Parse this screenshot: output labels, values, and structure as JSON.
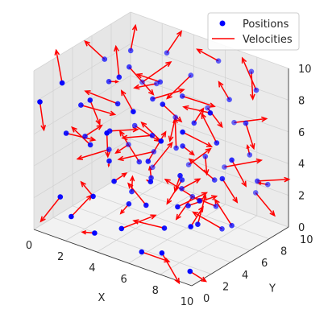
{
  "chart_data": {
    "type": "scatter",
    "projection": "3d",
    "axes": {
      "x": {
        "label": "X",
        "range": [
          0,
          10
        ],
        "ticks": [
          "0",
          "2",
          "4",
          "6",
          "8",
          "10"
        ]
      },
      "y": {
        "label": "Y",
        "range": [
          0,
          10
        ],
        "ticks": [
          "0",
          "2",
          "4",
          "6",
          "8",
          "10"
        ]
      },
      "z": {
        "label": "",
        "range": [
          0,
          10
        ],
        "ticks": [
          "0",
          "2",
          "4",
          "6",
          "8",
          "10"
        ]
      }
    },
    "grid": true,
    "legend": {
      "placement": "top-right",
      "entries": [
        {
          "label": "Positions",
          "marker": "dot",
          "color": "#0000ff"
        },
        {
          "label": "Velocities",
          "marker": "line",
          "color": "#ff0000"
        }
      ]
    },
    "series": [
      {
        "name": "Positions",
        "color": "#0000ff",
        "points": [
          [
            0.5,
            6.5,
            8.5
          ],
          [
            1.2,
            5.8,
            7.6
          ],
          [
            0.9,
            3.4,
            6.9
          ],
          [
            1.6,
            7.4,
            9.1
          ],
          [
            2.3,
            6.1,
            8.8
          ],
          [
            2.8,
            4.1,
            7.4
          ],
          [
            3.4,
            8.2,
            9.3
          ],
          [
            3.9,
            6.7,
            8.2
          ],
          [
            4.4,
            5.1,
            7.9
          ],
          [
            5.1,
            7.9,
            8.6
          ],
          [
            5.6,
            6.2,
            8.1
          ],
          [
            6.3,
            8.8,
            9.6
          ],
          [
            6.9,
            5.3,
            7.2
          ],
          [
            7.6,
            7.8,
            8.0
          ],
          [
            8.2,
            9.1,
            9.5
          ],
          [
            9.0,
            8.3,
            8.9
          ],
          [
            9.5,
            6.4,
            7.7
          ],
          [
            8.7,
            4.7,
            6.8
          ],
          [
            0.7,
            2.2,
            5.5
          ],
          [
            1.8,
            2.9,
            4.9
          ],
          [
            2.6,
            3.6,
            5.8
          ],
          [
            3.3,
            2.4,
            4.6
          ],
          [
            4.1,
            1.6,
            3.9
          ],
          [
            4.8,
            4.4,
            6.0
          ],
          [
            5.4,
            3.0,
            5.1
          ],
          [
            6.1,
            2.1,
            4.4
          ],
          [
            6.6,
            4.6,
            5.9
          ],
          [
            7.3,
            3.2,
            4.8
          ],
          [
            8.0,
            1.8,
            3.6
          ],
          [
            8.9,
            2.6,
            4.0
          ],
          [
            9.6,
            3.8,
            5.2
          ],
          [
            9.2,
            1.2,
            3.0
          ],
          [
            0.3,
            4.8,
            4.2
          ],
          [
            1.4,
            5.5,
            3.5
          ],
          [
            2.1,
            7.0,
            4.7
          ],
          [
            3.0,
            6.0,
            3.1
          ],
          [
            3.7,
            8.6,
            5.2
          ],
          [
            4.6,
            7.2,
            4.1
          ],
          [
            5.3,
            9.3,
            6.1
          ],
          [
            5.9,
            8.1,
            3.7
          ],
          [
            6.8,
            9.6,
            5.6
          ],
          [
            7.4,
            6.6,
            3.3
          ],
          [
            8.4,
            8.6,
            4.5
          ],
          [
            9.3,
            9.0,
            2.8
          ],
          [
            9.8,
            7.1,
            3.9
          ],
          [
            1.0,
            1.1,
            2.0
          ],
          [
            2.0,
            0.6,
            1.3
          ],
          [
            2.9,
            1.4,
            2.6
          ],
          [
            3.6,
            0.4,
            0.9
          ],
          [
            4.3,
            2.8,
            2.1
          ],
          [
            5.0,
            0.9,
            1.5
          ],
          [
            5.7,
            2.3,
            2.7
          ],
          [
            6.4,
            0.7,
            0.6
          ],
          [
            7.1,
            1.9,
            1.9
          ],
          [
            7.8,
            0.5,
            1.1
          ],
          [
            8.6,
            2.9,
            2.3
          ],
          [
            9.4,
            0.8,
            0.4
          ],
          [
            0.6,
            8.8,
            2.3
          ],
          [
            1.7,
            9.5,
            1.0
          ],
          [
            2.7,
            8.0,
            2.9
          ],
          [
            3.8,
            9.8,
            1.8
          ],
          [
            4.9,
            8.4,
            0.7
          ],
          [
            6.0,
            9.9,
            2.4
          ],
          [
            7.0,
            7.4,
            1.2
          ],
          [
            8.1,
            9.7,
            1.6
          ],
          [
            9.1,
            5.6,
            1.4
          ],
          [
            0.2,
            0.3,
            8.0
          ],
          [
            1.3,
            0.8,
            9.4
          ],
          [
            2.4,
            1.9,
            8.3
          ],
          [
            3.5,
            3.1,
            9.7
          ],
          [
            4.5,
            0.2,
            7.6
          ],
          [
            5.5,
            1.3,
            8.9
          ],
          [
            6.5,
            2.7,
            9.2
          ],
          [
            7.5,
            0.9,
            7.9
          ],
          [
            8.5,
            1.5,
            8.6
          ],
          [
            9.7,
            2.4,
            9.9
          ],
          [
            0.8,
            9.9,
            5.9
          ],
          [
            2.2,
            9.1,
            6.6
          ],
          [
            3.2,
            4.9,
            1.7
          ],
          [
            4.0,
            5.6,
            2.6
          ],
          [
            5.2,
            6.8,
            1.9
          ],
          [
            6.2,
            5.2,
            3.4
          ],
          [
            7.2,
            4.2,
            2.5
          ],
          [
            8.3,
            5.9,
            0.8
          ],
          [
            9.9,
            4.3,
            6.3
          ]
        ],
        "velocities": [
          [
            -1.2,
            0.4,
            0.3
          ],
          [
            0.8,
            -0.6,
            0.5
          ],
          [
            1.1,
            0.9,
            -0.4
          ],
          [
            -0.5,
            1.2,
            0.6
          ],
          [
            1.3,
            -0.2,
            -0.8
          ],
          [
            -0.9,
            -1.1,
            0.7
          ],
          [
            0.4,
            0.5,
            1.0
          ],
          [
            -1.3,
            0.3,
            -0.2
          ],
          [
            0.9,
            1.0,
            0.4
          ],
          [
            -0.6,
            -0.9,
            -1.0
          ],
          [
            1.2,
            0.6,
            -0.3
          ],
          [
            -0.3,
            -1.2,
            0.9
          ],
          [
            0.7,
            -0.4,
            1.1
          ],
          [
            -1.0,
            0.8,
            0.2
          ],
          [
            0.5,
            -0.7,
            -0.9
          ],
          [
            -0.8,
            0.2,
            1.2
          ],
          [
            1.0,
            -1.0,
            -0.5
          ],
          [
            -1.1,
            0.6,
            0.8
          ],
          [
            0.6,
            1.3,
            -0.6
          ],
          [
            -0.4,
            -0.8,
            1.0
          ],
          [
            1.3,
            0.1,
            0.5
          ],
          [
            -0.7,
            1.1,
            -0.9
          ],
          [
            0.9,
            -0.5,
            0.9
          ],
          [
            -1.2,
            -0.4,
            -0.4
          ],
          [
            0.3,
            0.9,
            1.2
          ],
          [
            -0.9,
            1.2,
            -0.7
          ],
          [
            1.1,
            -0.9,
            0.3
          ],
          [
            -0.5,
            0.4,
            -1.1
          ],
          [
            0.8,
            1.0,
            0.6
          ],
          [
            -1.3,
            -0.6,
            0.8
          ],
          [
            0.6,
            0.2,
            -1.0
          ],
          [
            -0.2,
            1.3,
            0.4
          ],
          [
            1.0,
            -0.3,
            1.0
          ],
          [
            -0.8,
            -1.2,
            -0.3
          ],
          [
            0.7,
            0.8,
            -0.8
          ],
          [
            -1.0,
            0.1,
            1.1
          ],
          [
            0.4,
            -1.1,
            -0.6
          ],
          [
            -0.6,
            0.9,
            0.9
          ],
          [
            1.2,
            -0.8,
            -0.2
          ],
          [
            -0.3,
            0.6,
            -1.2
          ],
          [
            0.9,
            1.1,
            0.1
          ],
          [
            -1.1,
            -0.2,
            0.7
          ],
          [
            0.5,
            -1.0,
            1.0
          ],
          [
            -0.9,
            0.7,
            -0.5
          ],
          [
            1.3,
            0.4,
            0.4
          ],
          [
            -0.4,
            -0.9,
            -1.0
          ],
          [
            0.8,
            0.3,
            1.2
          ],
          [
            -1.2,
            1.0,
            -0.1
          ],
          [
            0.2,
            -1.3,
            0.6
          ],
          [
            -0.7,
            0.5,
            -0.9
          ],
          [
            1.1,
            0.9,
            0.7
          ],
          [
            -0.5,
            -0.6,
            1.1
          ],
          [
            0.6,
            1.2,
            -0.7
          ],
          [
            -1.0,
            -0.8,
            0.3
          ],
          [
            0.9,
            -0.1,
            -1.1
          ],
          [
            -0.3,
            1.1,
            0.9
          ],
          [
            1.2,
            -0.7,
            0.2
          ],
          [
            -0.8,
            0.3,
            -0.8
          ],
          [
            0.4,
            0.9,
            1.0
          ],
          [
            -1.1,
            -1.0,
            -0.4
          ],
          [
            0.7,
            0.6,
            0.8
          ],
          [
            -0.6,
            -0.3,
            -1.2
          ],
          [
            1.0,
            1.3,
            0.2
          ],
          [
            -0.2,
            -1.1,
            0.7
          ],
          [
            0.8,
            0.2,
            -0.9
          ],
          [
            -1.3,
            0.8,
            0.5
          ],
          [
            0.5,
            -0.5,
            -1.0
          ],
          [
            -0.9,
            1.0,
            0.9
          ],
          [
            1.2,
            -1.2,
            -0.3
          ],
          [
            -0.4,
            0.4,
            1.2
          ],
          [
            0.6,
            -0.9,
            -0.6
          ],
          [
            -1.0,
            0.7,
            0.4
          ],
          [
            0.3,
            1.0,
            -1.1
          ],
          [
            -0.7,
            -0.4,
            0.8
          ],
          [
            1.1,
            0.5,
            -0.5
          ],
          [
            -0.5,
            -1.3,
            0.6
          ],
          [
            0.9,
            0.8,
            1.0
          ],
          [
            -1.2,
            0.2,
            -0.7
          ],
          [
            0.4,
            -0.6,
            1.1
          ],
          [
            -0.8,
            1.2,
            -0.2
          ],
          [
            1.0,
            -0.2,
            0.9
          ],
          [
            -0.3,
            -0.7,
            -1.0
          ],
          [
            0.7,
            1.1,
            0.3
          ],
          [
            -1.1,
            -0.5,
            0.6
          ],
          [
            0.5,
            0.3,
            -1.2
          ]
        ]
      }
    ]
  }
}
